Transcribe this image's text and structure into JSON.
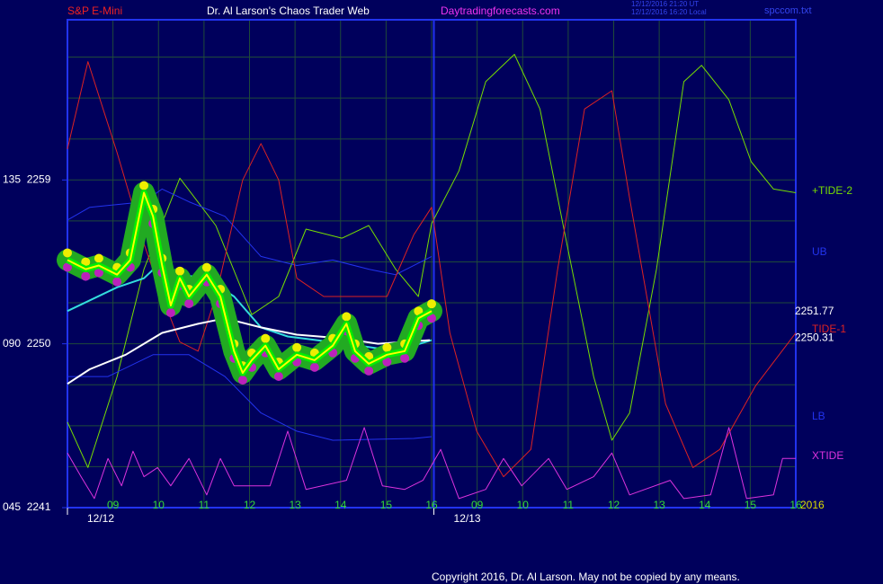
{
  "chart_data": {
    "type": "line",
    "title": "Dr. Al Larson's Chaos Trader Web",
    "instrument": "S&P E-Mini",
    "site": "Daytradingforecasts.com",
    "timestamps": [
      "12/12/2016 21:20 UT",
      "12/12/2016 16:20 Local"
    ],
    "file_name": "spccom.txt",
    "copyright": "Copyright 2016, Dr. Al Larson. May not be copied by any means.",
    "year_label": "2016",
    "xlim": [
      0,
      16
    ],
    "ylim": [
      2241,
      2267.8
    ],
    "yticks": [
      {
        "value": 2259,
        "label": "135  2259"
      },
      {
        "value": 2250,
        "label": "090  2250"
      },
      {
        "value": 2241,
        "label": "045  2241"
      }
    ],
    "y_grid": [
      2243.25,
      2245.5,
      2247.75,
      2250,
      2252.25,
      2254.5,
      2256.75,
      2259,
      2261.25,
      2263.5,
      2265.75
    ],
    "xticks": [
      {
        "value": 1,
        "label": "09"
      },
      {
        "value": 2,
        "label": "10"
      },
      {
        "value": 3,
        "label": "11"
      },
      {
        "value": 4,
        "label": "12"
      },
      {
        "value": 5,
        "label": "13"
      },
      {
        "value": 6,
        "label": "14"
      },
      {
        "value": 7,
        "label": "15"
      },
      {
        "value": 8,
        "label": "16"
      },
      {
        "value": 9,
        "label": "09"
      },
      {
        "value": 10,
        "label": "10"
      },
      {
        "value": 11,
        "label": "11"
      },
      {
        "value": 12,
        "label": "12"
      },
      {
        "value": 13,
        "label": "13"
      },
      {
        "value": 14,
        "label": "14"
      },
      {
        "value": 15,
        "label": "15"
      },
      {
        "value": 16,
        "label": "16"
      }
    ],
    "date_ticks": [
      {
        "value": 0,
        "label": "12/12"
      },
      {
        "value": 8.05,
        "label": "12/13"
      }
    ],
    "grid": true,
    "last_values": [
      {
        "value": 2251.77,
        "color": "#ffffff"
      },
      {
        "value": 2250.31,
        "color": "#ffffff"
      }
    ],
    "series": [
      {
        "name": "+TIDE-2",
        "color": "#77dd00",
        "x": [
          0,
          0.45,
          1.09,
          1.68,
          2.47,
          3.26,
          4.05,
          4.64,
          5.24,
          6.03,
          6.62,
          7.21,
          7.71,
          8.0,
          8.6,
          9.19,
          9.82,
          10.38,
          10.97,
          11.56,
          11.96,
          12.35,
          12.94,
          13.54,
          13.93,
          14.53,
          15.02,
          15.51,
          16
        ],
        "values": [
          2245.7,
          2243.2,
          2248.2,
          2254.1,
          2259.1,
          2256.5,
          2251.6,
          2252.6,
          2256.3,
          2255.8,
          2256.5,
          2254.1,
          2252.6,
          2256.6,
          2259.5,
          2264.4,
          2265.9,
          2262.9,
          2255.5,
          2248.2,
          2244.7,
          2246.2,
          2254.1,
          2264.4,
          2265.3,
          2263.4,
          2260.0,
          2258.5,
          2258.3
        ]
      },
      {
        "name": "UB",
        "color": "#2233ee",
        "x": [
          0,
          0.49,
          1.68,
          2.08,
          2.67,
          3.46,
          4.25,
          5.04,
          5.83,
          6.62,
          7.21,
          8.0
        ],
        "values": [
          2256.8,
          2257.5,
          2257.8,
          2258.5,
          2257.8,
          2257.0,
          2254.8,
          2254.3,
          2254.6,
          2254.1,
          2253.8,
          2254.8
        ]
      },
      {
        "name": "TIDE-1",
        "color": "#dd2222",
        "x": [
          0,
          0.45,
          1.09,
          1.68,
          2.08,
          2.47,
          2.87,
          3.26,
          3.85,
          4.25,
          4.64,
          5.04,
          5.63,
          7.02,
          7.61,
          8.0,
          8.4,
          8.99,
          9.58,
          10.18,
          10.77,
          11.36,
          11.96,
          12.35,
          13.14,
          13.74,
          14.33,
          15.12,
          16
        ],
        "values": [
          2260.7,
          2265.5,
          2260.5,
          2255.5,
          2252.6,
          2250.1,
          2249.6,
          2252.6,
          2259.0,
          2261.0,
          2259.0,
          2253.6,
          2252.6,
          2252.6,
          2256.0,
          2257.5,
          2250.6,
          2245.2,
          2242.7,
          2244.2,
          2254.1,
          2262.9,
          2263.9,
          2258.0,
          2246.7,
          2243.2,
          2244.2,
          2247.7,
          2250.6
        ]
      },
      {
        "name": "LB",
        "color": "#2233ee",
        "x": [
          0,
          0.89,
          1.88,
          2.67,
          3.46,
          4.25,
          5.04,
          5.83,
          7.61,
          8.0
        ],
        "values": [
          2248.2,
          2248.2,
          2249.4,
          2249.4,
          2248.2,
          2246.2,
          2245.2,
          2244.7,
          2244.8,
          2244.9
        ]
      },
      {
        "name": "XTIDE",
        "color": "#dd33dd",
        "x": [
          0,
          0.3,
          0.59,
          0.89,
          1.19,
          1.44,
          1.68,
          1.98,
          2.27,
          2.67,
          3.06,
          3.36,
          3.66,
          4.45,
          4.84,
          5.24,
          6.13,
          6.52,
          6.92,
          7.41,
          7.81,
          8.2,
          8.6,
          9.19,
          9.58,
          9.98,
          10.57,
          10.97,
          11.56,
          11.96,
          12.35,
          13.24,
          13.54,
          14.13,
          14.53,
          14.92,
          15.51,
          15.71,
          16
        ],
        "values": [
          2244.0,
          2242.7,
          2241.5,
          2243.7,
          2242.2,
          2244.1,
          2242.7,
          2243.2,
          2242.2,
          2243.7,
          2241.7,
          2243.7,
          2242.2,
          2242.2,
          2245.2,
          2242.0,
          2242.5,
          2245.4,
          2242.2,
          2242.0,
          2242.5,
          2244.2,
          2241.5,
          2242.0,
          2243.7,
          2242.2,
          2243.7,
          2242.0,
          2242.7,
          2244.0,
          2241.7,
          2242.5,
          2241.5,
          2241.7,
          2245.4,
          2241.5,
          2241.7,
          2243.7,
          2243.7
        ]
      },
      {
        "color": "#33dddd",
        "x": [
          0,
          1.09,
          1.68,
          1.98,
          2.47,
          3.06,
          3.66,
          4.25,
          4.84,
          6.42,
          7.21,
          8.0
        ],
        "values": [
          2251.8,
          2253.1,
          2253.6,
          2254.3,
          2253.8,
          2253.6,
          2252.6,
          2250.9,
          2250.4,
          2249.9,
          2249.6,
          2250.2
        ]
      },
      {
        "color": "#ffffff",
        "x": [
          0,
          0.49,
          1.28,
          2.08,
          2.87,
          3.46,
          4.25,
          5.04,
          6.03,
          6.82,
          7.96
        ],
        "values": [
          2247.8,
          2248.6,
          2249.4,
          2250.6,
          2251.1,
          2251.4,
          2250.9,
          2250.5,
          2250.3,
          2250.0,
          2250.2
        ]
      },
      {
        "color": "#ffff00",
        "price": true,
        "x": [
          0,
          0.4,
          0.69,
          1.09,
          1.38,
          1.68,
          1.88,
          2.08,
          2.27,
          2.47,
          2.67,
          3.06,
          3.36,
          3.66,
          3.85,
          4.05,
          4.35,
          4.64,
          5.04,
          5.43,
          5.83,
          6.13,
          6.32,
          6.62,
          7.02,
          7.41,
          7.71,
          8.0
        ],
        "values": [
          2254.6,
          2254.1,
          2254.3,
          2253.8,
          2254.6,
          2258.3,
          2257.0,
          2254.3,
          2252.1,
          2253.6,
          2252.6,
          2253.8,
          2252.6,
          2249.6,
          2248.4,
          2249.1,
          2249.9,
          2248.6,
          2249.4,
          2249.1,
          2249.9,
          2251.1,
          2249.6,
          2248.9,
          2249.4,
          2249.6,
          2251.4,
          2251.8
        ]
      }
    ]
  }
}
